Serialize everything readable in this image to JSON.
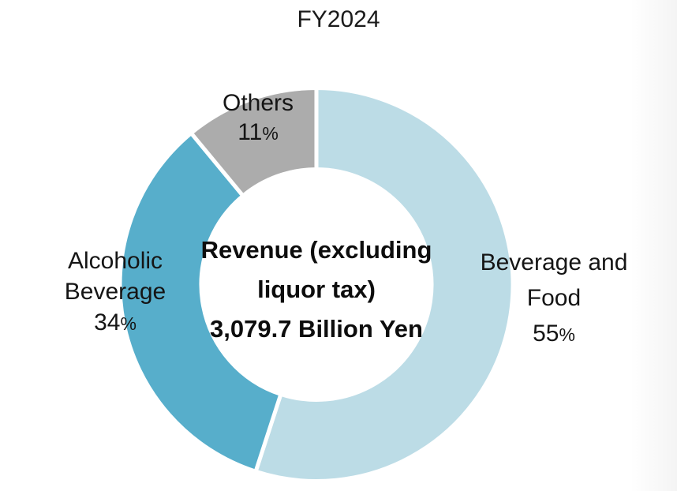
{
  "title": "FY2024",
  "center_text": {
    "line1": "Revenue (excluding",
    "line2": "liquor tax)",
    "line3": "3,079.7 Billion Yen"
  },
  "slice_labels": {
    "others": {
      "name": "Others",
      "value": "11",
      "percent": "%"
    },
    "alcoholic": {
      "line1": "Alcoholic",
      "line2": "Beverage",
      "value": "34",
      "percent": "%"
    },
    "beverage_food": {
      "line1": "Beverage and",
      "line2": "Food",
      "value": "55",
      "percent": "%"
    }
  },
  "chart_data": {
    "type": "pie",
    "subtype": "donut",
    "title": "FY2024",
    "units": "percent",
    "start_angle_deg": 0,
    "direction": "clockwise",
    "inner_radius_ratio": 0.586,
    "center_label": "Revenue (excluding liquor tax) 3,079.7 Billion Yen",
    "separator_color": "#FFFFFF",
    "background_color": "#FFFFFF",
    "slices": [
      {
        "label": "Beverage and Food",
        "value": 55,
        "color": "#BCDCE6"
      },
      {
        "label": "Alcoholic Beverage",
        "value": 34,
        "color": "#57AECB"
      },
      {
        "label": "Others",
        "value": 11,
        "color": "#ACACAC"
      }
    ]
  }
}
